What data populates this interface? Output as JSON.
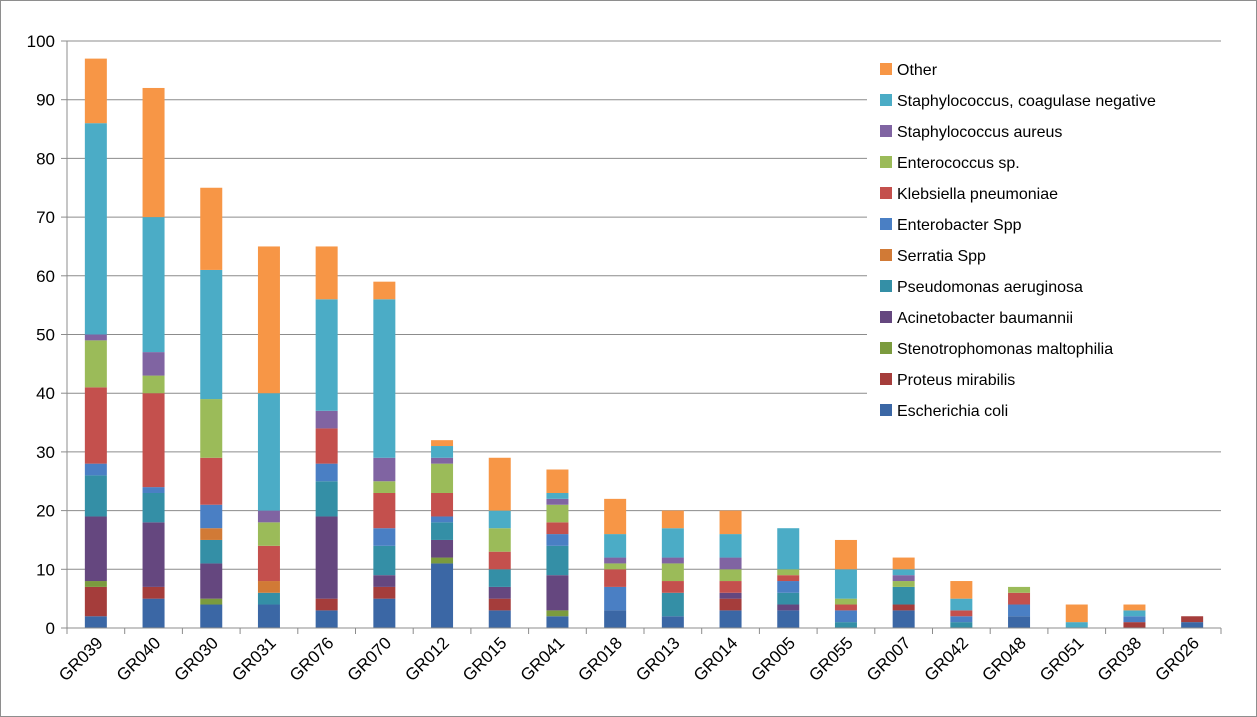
{
  "chart_data": {
    "type": "bar",
    "stacked": true,
    "title": "",
    "xlabel": "",
    "ylabel": "",
    "ylim": [
      0,
      100
    ],
    "yticks": [
      0,
      10,
      20,
      30,
      40,
      50,
      60,
      70,
      80,
      90,
      100
    ],
    "grid": true,
    "legend_position": "top-right",
    "categories": [
      "GR039",
      "GR040",
      "GR030",
      "GR031",
      "GR076",
      "GR070",
      "GR012",
      "GR015",
      "GR041",
      "GR018",
      "GR013",
      "GR014",
      "GR005",
      "GR055",
      "GR007",
      "GR042",
      "GR048",
      "GR051",
      "GR038",
      "GR026"
    ],
    "series": [
      {
        "name": "Escherichia coli",
        "color": "#3b67a5",
        "values": [
          2,
          5,
          4,
          4,
          3,
          5,
          11,
          3,
          2,
          3,
          2,
          3,
          3,
          0,
          3,
          0,
          2,
          0,
          0,
          1
        ]
      },
      {
        "name": "Proteus mirabilis",
        "color": "#a53d3b",
        "values": [
          5,
          2,
          0,
          0,
          2,
          2,
          0,
          2,
          0,
          0,
          0,
          2,
          0,
          0,
          1,
          0,
          0,
          0,
          1,
          1
        ]
      },
      {
        "name": "Stenotrophomonas maltophilia",
        "color": "#7b9b3e",
        "values": [
          1,
          0,
          1,
          0,
          0,
          0,
          1,
          0,
          1,
          0,
          0,
          0,
          0,
          0,
          0,
          0,
          0,
          0,
          0,
          0
        ]
      },
      {
        "name": "Acinetobacter baumannii",
        "color": "#65477f",
        "values": [
          11,
          11,
          6,
          0,
          14,
          2,
          3,
          2,
          6,
          0,
          0,
          1,
          1,
          0,
          0,
          0,
          0,
          0,
          0,
          0
        ]
      },
      {
        "name": "Pseudomonas aeruginosa",
        "color": "#348fa6",
        "values": [
          7,
          5,
          4,
          2,
          6,
          5,
          3,
          3,
          5,
          0,
          4,
          0,
          2,
          1,
          3,
          1,
          0,
          0,
          0,
          0
        ]
      },
      {
        "name": "Serratia Spp",
        "color": "#d17a36",
        "values": [
          0,
          0,
          2,
          2,
          0,
          0,
          0,
          0,
          0,
          0,
          0,
          0,
          0,
          0,
          0,
          0,
          0,
          0,
          0,
          0
        ]
      },
      {
        "name": "Enterobacter Spp",
        "color": "#4a7fc4",
        "values": [
          2,
          1,
          4,
          0,
          3,
          3,
          1,
          0,
          2,
          4,
          0,
          0,
          2,
          2,
          0,
          1,
          2,
          0,
          1,
          0
        ]
      },
      {
        "name": "Klebsiella pneumoniae",
        "color": "#c4504d",
        "values": [
          13,
          16,
          8,
          6,
          6,
          6,
          4,
          3,
          2,
          3,
          2,
          2,
          1,
          1,
          0,
          1,
          2,
          0,
          0,
          0
        ]
      },
      {
        "name": "Enterococcus sp.",
        "color": "#9bbb59",
        "values": [
          8,
          3,
          10,
          4,
          0,
          2,
          5,
          4,
          3,
          1,
          3,
          2,
          1,
          1,
          1,
          0,
          1,
          0,
          0,
          0
        ]
      },
      {
        "name": "Staphylococcus aureus",
        "color": "#8064a2",
        "values": [
          1,
          4,
          0,
          2,
          3,
          4,
          1,
          0,
          1,
          1,
          1,
          2,
          0,
          0,
          1,
          0,
          0,
          0,
          0,
          0
        ]
      },
      {
        "name": "Staphylococcus, coagulase negative",
        "color": "#4bacc6",
        "values": [
          36,
          23,
          22,
          20,
          19,
          27,
          2,
          3,
          1,
          4,
          5,
          4,
          7,
          5,
          1,
          2,
          0,
          1,
          1,
          0
        ]
      },
      {
        "name": "Other",
        "color": "#f79646",
        "values": [
          11,
          22,
          14,
          25,
          9,
          3,
          1,
          9,
          4,
          6,
          3,
          4,
          0,
          5,
          2,
          3,
          0,
          3,
          1,
          0
        ]
      }
    ]
  }
}
